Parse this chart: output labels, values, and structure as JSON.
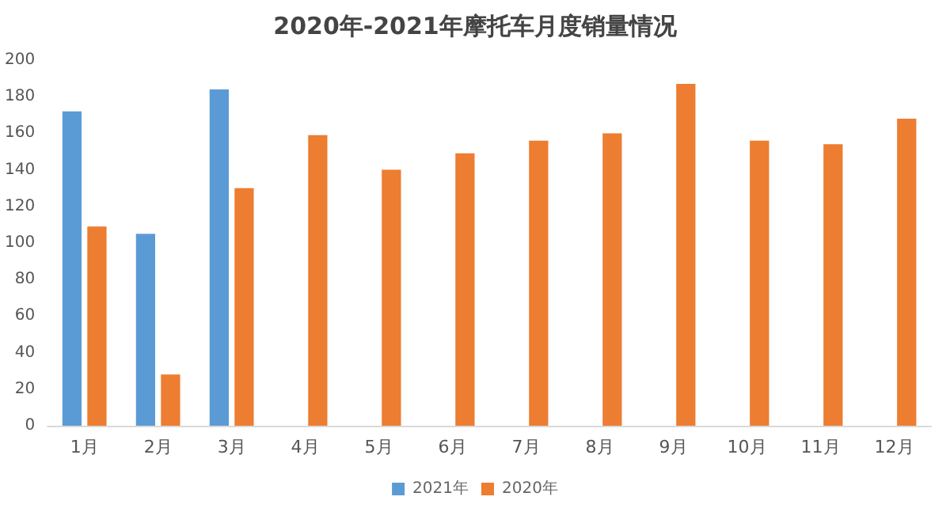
{
  "chart_data": {
    "type": "bar",
    "title": "2020年-2021年摩托车月度销量情况",
    "categories": [
      "1月",
      "2月",
      "3月",
      "4月",
      "5月",
      "6月",
      "7月",
      "8月",
      "9月",
      "10月",
      "11月",
      "12月"
    ],
    "series": [
      {
        "name": "2021年",
        "color": "#5b9bd5",
        "values": [
          172,
          105,
          184,
          null,
          null,
          null,
          null,
          null,
          null,
          null,
          null,
          null
        ]
      },
      {
        "name": "2020年",
        "color": "#ed7d31",
        "values": [
          109,
          28,
          130,
          159,
          140,
          149,
          156,
          160,
          187,
          156,
          154,
          168
        ]
      }
    ],
    "ylim": [
      0,
      200
    ],
    "yticks": [
      0,
      20,
      40,
      60,
      80,
      100,
      120,
      140,
      160,
      180,
      200
    ],
    "grid": false,
    "legend": "bottom"
  }
}
